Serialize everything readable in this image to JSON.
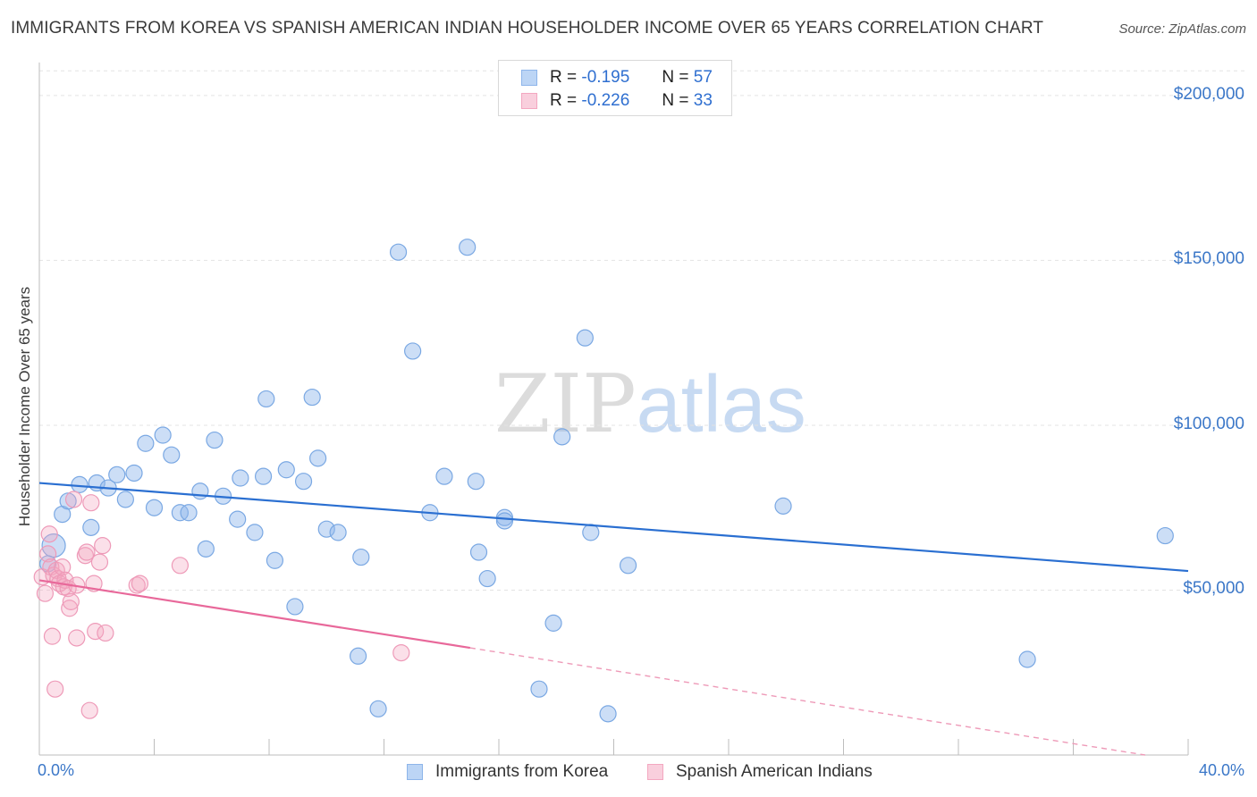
{
  "title": "IMMIGRANTS FROM KOREA VS SPANISH AMERICAN INDIAN HOUSEHOLDER INCOME OVER 65 YEARS CORRELATION CHART",
  "source": "Source: ZipAtlas.com",
  "watermark": {
    "zip": "ZIP",
    "atlas": "atlas"
  },
  "colors": {
    "blue": "#8db5ea",
    "blue_line": "#2a6fd1",
    "pink": "#f3a7c0",
    "pink_line": "#e8689a",
    "axis_text": "#3b77c8"
  },
  "legend": {
    "rows": [
      {
        "r_label": "R =",
        "r_value": "-0.195",
        "n_label": "N =",
        "n_value": "57"
      },
      {
        "r_label": "R =",
        "r_value": "-0.226",
        "n_label": "N =",
        "n_value": "33"
      }
    ]
  },
  "chart_data": {
    "type": "scatter",
    "title": "IMMIGRANTS FROM KOREA VS SPANISH AMERICAN INDIAN HOUSEHOLDER INCOME OVER 65 YEARS CORRELATION CHART",
    "xlabel": "",
    "ylabel": "Householder Income Over 65 years",
    "xlim": [
      0,
      40
    ],
    "ylim": [
      0,
      210000
    ],
    "x_tick_labels": [
      "0.0%",
      "40.0%"
    ],
    "y_ticks": [
      50000,
      100000,
      150000,
      200000
    ],
    "y_tick_labels": [
      "$50,000",
      "$100,000",
      "$150,000",
      "$200,000"
    ],
    "grid": true,
    "legend_position": "bottom",
    "series": [
      {
        "name": "Immigrants from Korea",
        "color": "#8db5ea",
        "trend": {
          "x": [
            0,
            40
          ],
          "y": [
            82500,
            55800
          ],
          "dashed_extension": false
        },
        "points": [
          [
            0.5,
            63500
          ],
          [
            0.8,
            73000
          ],
          [
            1.0,
            77000
          ],
          [
            1.4,
            82000
          ],
          [
            1.8,
            69000
          ],
          [
            2.0,
            82500
          ],
          [
            2.4,
            81000
          ],
          [
            3.0,
            77500
          ],
          [
            2.7,
            85000
          ],
          [
            3.3,
            85500
          ],
          [
            3.7,
            94500
          ],
          [
            4.0,
            75000
          ],
          [
            4.3,
            97000
          ],
          [
            4.6,
            91000
          ],
          [
            4.9,
            73500
          ],
          [
            5.2,
            73500
          ],
          [
            5.6,
            80000
          ],
          [
            5.8,
            62500
          ],
          [
            6.1,
            95500
          ],
          [
            6.4,
            78500
          ],
          [
            6.9,
            71500
          ],
          [
            7.0,
            84000
          ],
          [
            7.5,
            67500
          ],
          [
            7.8,
            84500
          ],
          [
            7.9,
            108000
          ],
          [
            8.2,
            59000
          ],
          [
            8.6,
            86500
          ],
          [
            8.9,
            45000
          ],
          [
            9.2,
            83000
          ],
          [
            9.5,
            108500
          ],
          [
            9.7,
            90000
          ],
          [
            10.0,
            68500
          ],
          [
            10.4,
            67500
          ],
          [
            11.1,
            30000
          ],
          [
            11.2,
            60000
          ],
          [
            11.8,
            14000
          ],
          [
            12.5,
            152500
          ],
          [
            13.0,
            122500
          ],
          [
            13.6,
            73500
          ],
          [
            14.1,
            84500
          ],
          [
            14.9,
            154000
          ],
          [
            15.2,
            83000
          ],
          [
            15.3,
            61500
          ],
          [
            15.6,
            53500
          ],
          [
            16.2,
            72000
          ],
          [
            16.2,
            71000
          ],
          [
            17.4,
            20000
          ],
          [
            17.9,
            40000
          ],
          [
            18.2,
            96500
          ],
          [
            19.0,
            126500
          ],
          [
            19.2,
            67500
          ],
          [
            19.8,
            12500
          ],
          [
            20.5,
            57500
          ],
          [
            25.9,
            75500
          ],
          [
            34.4,
            29000
          ],
          [
            39.2,
            66500
          ],
          [
            0.3,
            58000
          ]
        ]
      },
      {
        "name": "Spanish American Indians",
        "color": "#f3a7c0",
        "trend": {
          "x": [
            0,
            15
          ],
          "y": [
            53000,
            32500
          ],
          "dashed_extension": true,
          "dashed_to": {
            "x": 38.5,
            "y": 0
          }
        },
        "points": [
          [
            0.1,
            54000
          ],
          [
            0.2,
            49000
          ],
          [
            0.3,
            61000
          ],
          [
            0.35,
            67000
          ],
          [
            0.4,
            57000
          ],
          [
            0.45,
            36000
          ],
          [
            0.5,
            54500
          ],
          [
            0.55,
            20000
          ],
          [
            0.6,
            56000
          ],
          [
            0.65,
            53500
          ],
          [
            0.7,
            52000
          ],
          [
            0.8,
            57000
          ],
          [
            0.85,
            51000
          ],
          [
            0.9,
            53000
          ],
          [
            1.0,
            50500
          ],
          [
            1.05,
            44500
          ],
          [
            1.1,
            46500
          ],
          [
            1.2,
            77500
          ],
          [
            1.3,
            51500
          ],
          [
            1.3,
            35500
          ],
          [
            1.6,
            60500
          ],
          [
            1.65,
            61500
          ],
          [
            1.8,
            76500
          ],
          [
            1.75,
            13500
          ],
          [
            1.9,
            52000
          ],
          [
            1.95,
            37500
          ],
          [
            2.1,
            58500
          ],
          [
            2.2,
            63500
          ],
          [
            2.3,
            37000
          ],
          [
            3.4,
            51500
          ],
          [
            3.5,
            52000
          ],
          [
            4.9,
            57500
          ],
          [
            12.6,
            31000
          ]
        ]
      }
    ]
  }
}
